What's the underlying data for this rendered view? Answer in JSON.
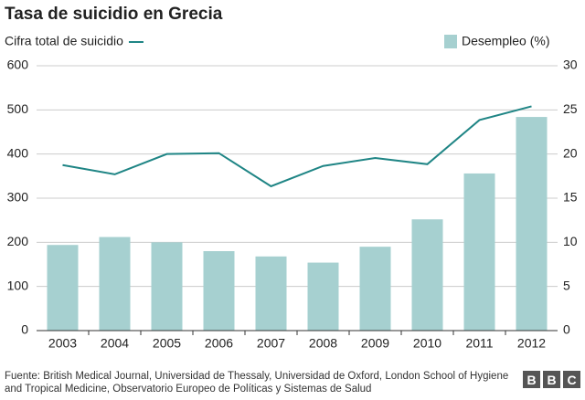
{
  "chart_data": {
    "type": "combo",
    "title": "Tasa de suicidio en Grecia",
    "categories": [
      "2003",
      "2004",
      "2005",
      "2006",
      "2007",
      "2008",
      "2009",
      "2010",
      "2011",
      "2012"
    ],
    "series": [
      {
        "name": "Cifra total de suicidio",
        "type": "line",
        "axis": "y",
        "color": "#1f8585",
        "values": [
          375,
          354,
          400,
          402,
          327,
          373,
          391,
          377,
          477,
          508
        ]
      },
      {
        "name": "Desempleo (%)",
        "type": "bar",
        "axis": "y2",
        "color": "#a6d0d0",
        "values": [
          9.7,
          10.6,
          10.0,
          9.0,
          8.4,
          7.7,
          9.5,
          12.6,
          17.8,
          24.2
        ]
      }
    ],
    "ylim": [
      0,
      600
    ],
    "yticks": [
      0,
      100,
      200,
      300,
      400,
      500,
      600
    ],
    "y2lim": [
      0,
      30
    ],
    "y2ticks": [
      0,
      5,
      10,
      15,
      20,
      25,
      30
    ],
    "grid": true,
    "source": "Fuente: British Medical Journal, Universidad de Thessaly, Universidad de Oxford, London School of Hygiene and Tropical Medicine, Observatorio Europeo de Políticas y Sistemas de Salud",
    "logo": [
      "B",
      "B",
      "C"
    ]
  }
}
